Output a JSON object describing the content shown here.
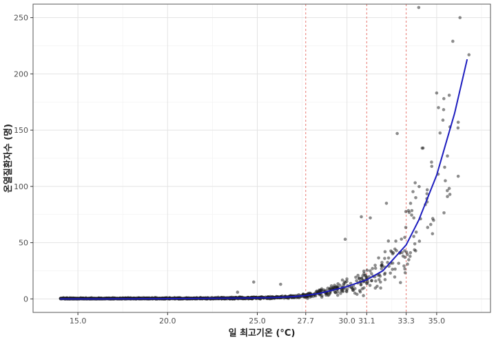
{
  "chart_data": {
    "type": "scatter",
    "xlabel": "일 최고기온 (°C)",
    "ylabel": "온열질환자수 (명)",
    "xlim": [
      12.5,
      38.0
    ],
    "ylim": [
      -12,
      262
    ],
    "x_ticks": [
      15.0,
      20.0,
      25.0,
      27.7,
      30.0,
      31.1,
      33.3,
      35.0
    ],
    "x_tick_labels": [
      "15.0",
      "20.0",
      "25.0",
      "27.7",
      "30.0",
      "31.1",
      "33.3",
      "35.0"
    ],
    "y_ticks": [
      0,
      50,
      100,
      150,
      200,
      250
    ],
    "y_tick_labels": [
      "0",
      "50",
      "100",
      "150",
      "200",
      "250"
    ],
    "grid": true,
    "reference_lines_x": [
      27.7,
      31.1,
      33.3
    ],
    "fit_curve": {
      "x": [
        14.0,
        16.0,
        18.0,
        20.0,
        22.0,
        24.0,
        25.0,
        26.0,
        27.0,
        27.7,
        28.5,
        29.0,
        30.0,
        31.1,
        32.0,
        33.3,
        34.0,
        35.0,
        36.0,
        36.7
      ],
      "y": [
        0,
        0,
        0.1,
        0.2,
        0.4,
        0.7,
        0.9,
        1.2,
        2,
        3,
        5,
        7,
        11,
        17,
        25,
        48,
        70,
        110,
        165,
        213
      ]
    },
    "highlight_points": [
      {
        "x": 34.0,
        "y": 259
      },
      {
        "x": 36.3,
        "y": 250
      },
      {
        "x": 35.9,
        "y": 229
      },
      {
        "x": 36.8,
        "y": 217
      },
      {
        "x": 35.0,
        "y": 183
      },
      {
        "x": 35.7,
        "y": 181
      },
      {
        "x": 35.4,
        "y": 178
      },
      {
        "x": 35.1,
        "y": 170
      },
      {
        "x": 36.2,
        "y": 157
      },
      {
        "x": 32.8,
        "y": 147
      },
      {
        "x": 35.6,
        "y": 127
      },
      {
        "x": 36.2,
        "y": 109
      },
      {
        "x": 35.6,
        "y": 91
      },
      {
        "x": 32.2,
        "y": 85
      },
      {
        "x": 30.8,
        "y": 73
      },
      {
        "x": 31.3,
        "y": 72
      },
      {
        "x": 29.9,
        "y": 53
      },
      {
        "x": 24.8,
        "y": 15
      },
      {
        "x": 26.3,
        "y": 13
      },
      {
        "x": 23.9,
        "y": 6
      }
    ],
    "cloud_seed": 12345,
    "cloud_count": 1500
  },
  "colors": {
    "points": "#1a1a1a",
    "fit_line": "#1c1cbe",
    "reference_line": "#e8766f",
    "grid_major": "#e3e3e3",
    "grid_minor": "#f2f2f2",
    "panel_border": "#555555"
  }
}
